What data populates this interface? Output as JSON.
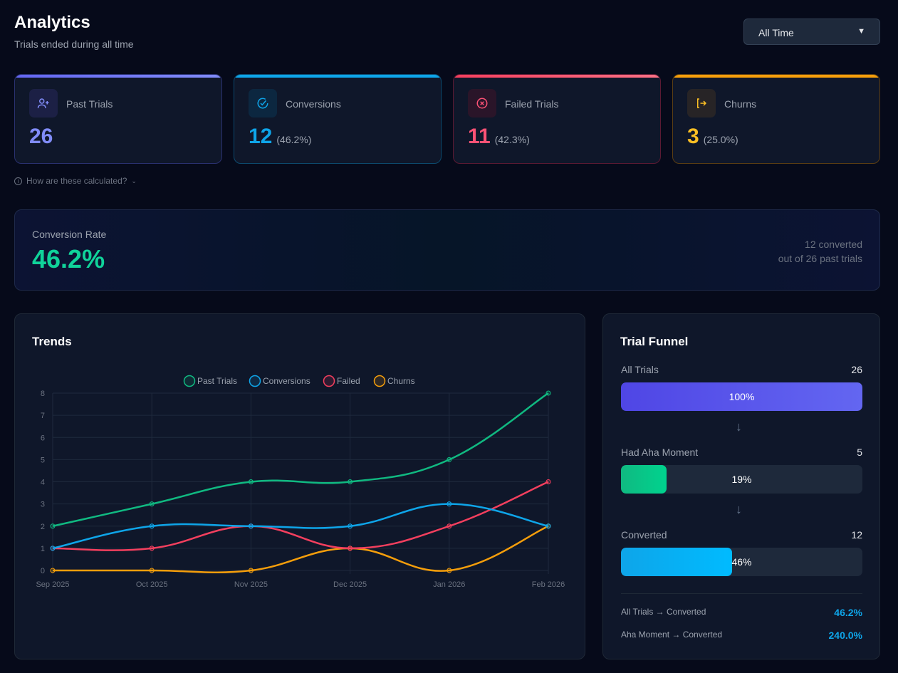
{
  "header": {
    "title": "Analytics",
    "subtitle": "Trials ended during all time",
    "range_select": "All Time"
  },
  "cards": [
    {
      "label": "Past Trials",
      "value": "26",
      "pct": "",
      "color": "#818cf8",
      "icon": "user-plus-icon"
    },
    {
      "label": "Conversions",
      "value": "12",
      "pct": "(46.2%)",
      "color": "#0ea5e9",
      "icon": "check-circle-icon"
    },
    {
      "label": "Failed Trials",
      "value": "11",
      "pct": "(42.3%)",
      "color": "#fb5275",
      "icon": "x-circle-icon"
    },
    {
      "label": "Churns",
      "value": "3",
      "pct": "(25.0%)",
      "color": "#fbbf24",
      "icon": "log-out-icon"
    }
  ],
  "info_toggle": "How are these calculated?",
  "conversion_rate": {
    "label": "Conversion Rate",
    "value": "46.2%",
    "detail_line1": "12 converted",
    "detail_line2": "out of 26 past trials",
    "color": "#10d39a"
  },
  "trends": {
    "title": "Trends"
  },
  "chart_data": {
    "type": "line",
    "categories": [
      "Sep 2025",
      "Oct 2025",
      "Nov 2025",
      "Dec 2025",
      "Jan 2026",
      "Feb 2026"
    ],
    "ylim": [
      0,
      8
    ],
    "yticks": [
      "0",
      "1",
      "2",
      "3",
      "4",
      "5",
      "6",
      "7",
      "8"
    ],
    "grid": true,
    "legend": "top",
    "series": [
      {
        "name": "Past Trials",
        "color": "#10b981",
        "values": [
          2,
          3,
          4,
          4,
          5,
          8
        ]
      },
      {
        "name": "Conversions",
        "color": "#0ea5e9",
        "values": [
          1,
          2,
          2,
          2,
          3,
          2
        ]
      },
      {
        "name": "Failed",
        "color": "#f43f5e",
        "values": [
          1,
          1,
          2,
          1,
          2,
          4
        ]
      },
      {
        "name": "Churns",
        "color": "#f59e0b",
        "values": [
          0,
          0,
          0,
          1,
          0,
          2
        ]
      }
    ]
  },
  "funnel": {
    "title": "Trial Funnel",
    "stages": [
      {
        "label": "All Trials",
        "count": "26",
        "pct_label": "100%",
        "fraction": 1.0
      },
      {
        "label": "Had Aha Moment",
        "count": "5",
        "pct_label": "19%",
        "fraction": 0.19
      },
      {
        "label": "Converted",
        "count": "12",
        "pct_label": "46%",
        "fraction": 0.46
      }
    ],
    "summary": [
      {
        "label": "All Trials → Converted",
        "value": "46.2%"
      },
      {
        "label": "Aha Moment → Converted",
        "value": "240.0%"
      }
    ]
  }
}
